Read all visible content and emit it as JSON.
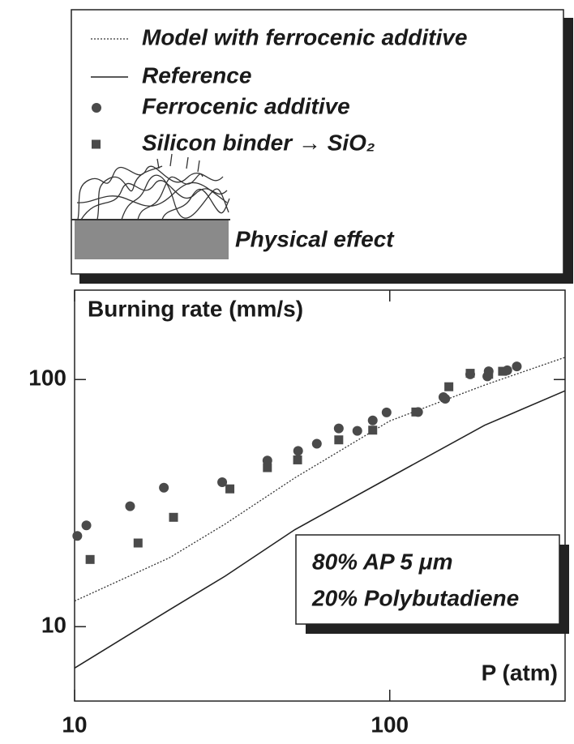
{
  "chart_data": {
    "type": "scatter",
    "y_label": "Burning rate (mm/s)",
    "x_label": "P (atm)",
    "log_x": true,
    "log_y": true,
    "xlim": [
      10,
      360
    ],
    "ylim": [
      5,
      230
    ],
    "xticks": [
      10,
      100
    ],
    "yticks": [
      10,
      100
    ],
    "series": [
      {
        "name": "Model with ferrocenic additive",
        "style": "dotted",
        "color": "#333333",
        "x": [
          10,
          20,
          30,
          50,
          100,
          200,
          360
        ],
        "values": [
          12.7,
          19,
          26,
          40,
          68,
          95,
          123
        ]
      },
      {
        "name": "Reference",
        "style": "solid",
        "color": "#222222",
        "x": [
          10,
          20,
          30,
          50,
          100,
          200,
          360
        ],
        "values": [
          6.8,
          11.7,
          16,
          24.7,
          40.2,
          65.3,
          90
        ]
      },
      {
        "name": "Ferrocenic additive",
        "style": "circle",
        "color": "#4a4a4a",
        "x": [
          10.2,
          10.9,
          15,
          19.2,
          29.4,
          40.9,
          51.2,
          58.7,
          68.9,
          78.9,
          88.3,
          97.7,
          123,
          148,
          150,
          180,
          206,
          204,
          236,
          253
        ],
        "values": [
          23.3,
          25.7,
          30.7,
          36.5,
          38.4,
          47,
          51.4,
          55,
          63.4,
          62,
          68.3,
          73.6,
          73.9,
          84.9,
          83.6,
          105,
          108,
          103,
          109,
          113
        ]
      },
      {
        "name": "Silicon binder → SiO₂",
        "style": "square",
        "color": "#4a4a4a",
        "x": [
          11.2,
          15.9,
          20.6,
          31.1,
          40.9,
          51,
          68.9,
          88.3,
          121,
          154,
          180,
          206,
          228
        ],
        "values": [
          18.7,
          21.8,
          27.7,
          36.1,
          44,
          47.3,
          57,
          62.4,
          73.9,
          93.5,
          106,
          105,
          108
        ]
      }
    ],
    "legend_extra": "Physical effect",
    "inset_text": [
      "80% AP  5 μm",
      "20% Polybutadiene"
    ]
  }
}
